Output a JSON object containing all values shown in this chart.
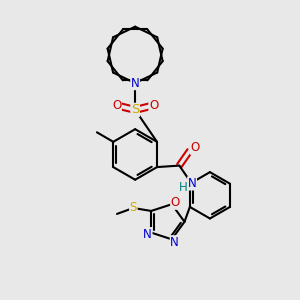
{
  "bg_color": "#e8e8e8",
  "atom_colors": {
    "C": "#000000",
    "N": "#0000cc",
    "O": "#cc0000",
    "S": "#ccaa00",
    "H": "#008080"
  },
  "bond_color": "#000000",
  "line_width": 1.5,
  "font_size": 8.5
}
